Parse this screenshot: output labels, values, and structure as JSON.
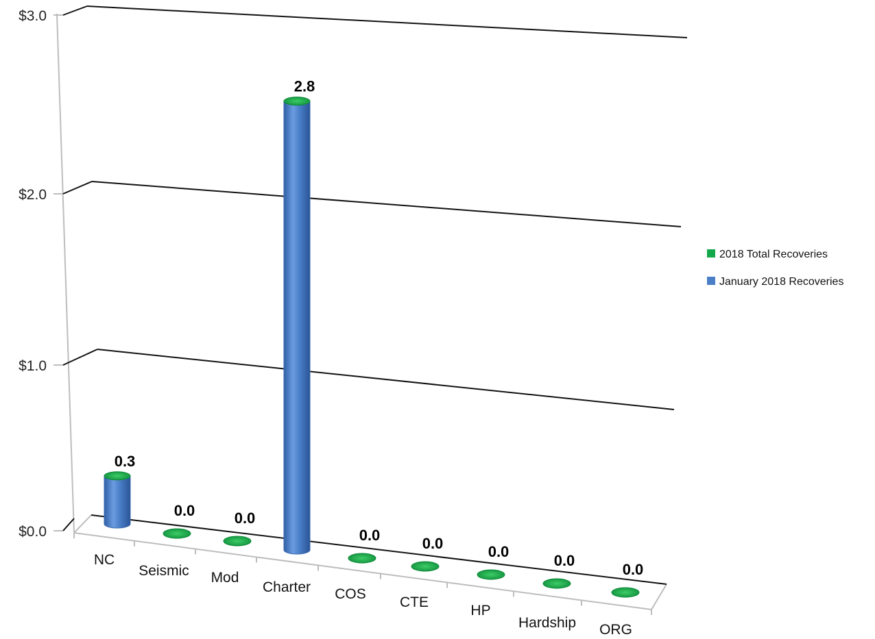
{
  "chart_data": {
    "type": "bar",
    "style": "3d-cylinder",
    "title": "",
    "xlabel": "",
    "ylabel": "",
    "categories": [
      "NC",
      "Seismic",
      "Mod",
      "Charter",
      "COS",
      "CTE",
      "HP",
      "Hardship",
      "ORG"
    ],
    "series": [
      {
        "name": "2018 Total Recoveries",
        "color": "#13a94a",
        "values": [
          0.3,
          0.0,
          0.0,
          2.8,
          0.0,
          0.0,
          0.0,
          0.0,
          0.0
        ]
      },
      {
        "name": "January 2018  Recoveries",
        "color": "#4a7fc8",
        "values": [
          0.3,
          0.0,
          0.0,
          2.8,
          0.0,
          0.0,
          0.0,
          0.0,
          0.0
        ]
      }
    ],
    "data_labels": [
      "0.3",
      "0.0",
      "0.0",
      "2.8",
      "0.0",
      "0.0",
      "0.0",
      "0.0",
      "0.0"
    ],
    "ylim": [
      0,
      3
    ],
    "yticks": [
      {
        "value": 0,
        "label": "$0.0"
      },
      {
        "value": 1,
        "label": "$1.0"
      },
      {
        "value": 2,
        "label": "$2.0"
      },
      {
        "value": 3,
        "label": "$3.0"
      }
    ],
    "grid": true,
    "legend_position": "right"
  }
}
